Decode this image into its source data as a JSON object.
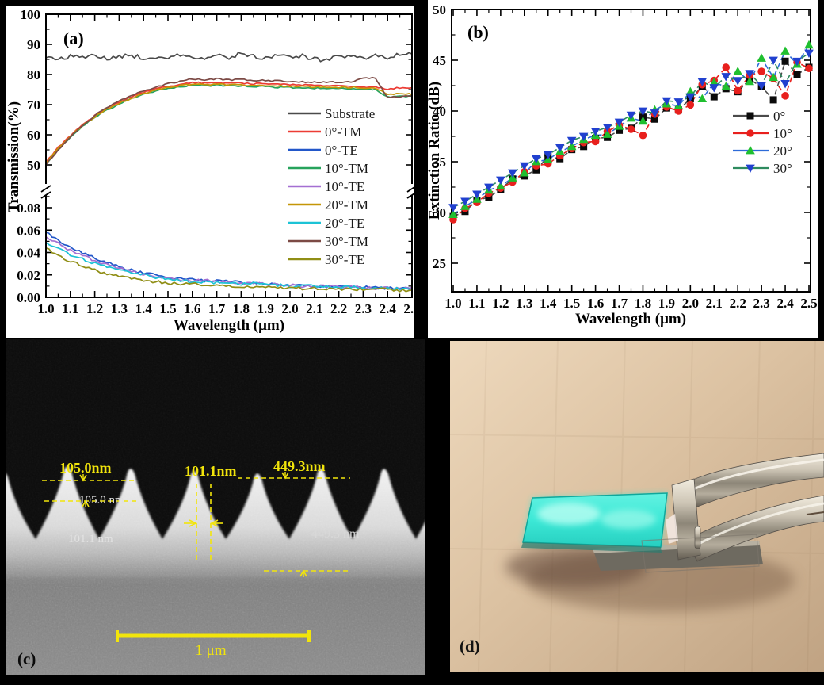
{
  "figure_title": "Four-panel figure: transmission spectra, extinction ratio, SEM cross-section, device photo",
  "chart_data": [
    {
      "type": "line",
      "panel_label": "(a)",
      "xlabel": "Wavelength (μm)",
      "ylabel": "Transmission(%)",
      "axis_break": true,
      "upper_ylim": [
        50,
        100
      ],
      "upper_ticks": [
        50,
        60,
        70,
        80,
        90,
        100
      ],
      "lower_ylim": [
        0.0,
        0.09
      ],
      "lower_ticks": [
        0.0,
        0.02,
        0.04,
        0.06,
        0.08
      ],
      "x_ticks": [
        1.0,
        1.1,
        1.2,
        1.3,
        1.4,
        1.5,
        1.6,
        1.7,
        1.8,
        1.9,
        2.0,
        2.1,
        2.2,
        2.3,
        2.4,
        2.5
      ],
      "x": [
        1.0,
        1.05,
        1.1,
        1.15,
        1.2,
        1.25,
        1.3,
        1.35,
        1.4,
        1.45,
        1.5,
        1.55,
        1.6,
        1.65,
        1.7,
        1.75,
        1.8,
        1.85,
        1.9,
        1.95,
        2.0,
        2.05,
        2.1,
        2.15,
        2.2,
        2.25,
        2.3,
        2.35,
        2.4,
        2.45,
        2.5
      ],
      "series": [
        {
          "name": "Substrate",
          "color": "#4a4a4a",
          "segment": "upper",
          "jitter": 0.7,
          "values": [
            85.6,
            85.2,
            86.1,
            85.4,
            86.8,
            85.0,
            85.9,
            86.3,
            85.5,
            86.0,
            85.3,
            86.6,
            85.8,
            85.4,
            86.2,
            85.7,
            87.0,
            85.9,
            85.5,
            86.4,
            85.8,
            86.1,
            85.2,
            84.8,
            85.9,
            86.5,
            85.6,
            86.2,
            85.8,
            86.7,
            86.9
          ]
        },
        {
          "name": "0°-TM",
          "color": "#ec3c34",
          "segment": "upper",
          "jitter": 0.25,
          "values": [
            50.8,
            55.8,
            59.8,
            63.3,
            66.3,
            68.8,
            70.9,
            72.6,
            74.1,
            75.3,
            76.1,
            76.7,
            77.3,
            77.2,
            77.4,
            77.1,
            77.2,
            76.9,
            77.0,
            76.7,
            76.6,
            76.5,
            76.4,
            76.2,
            76.3,
            76.1,
            76.0,
            75.8,
            75.2,
            75.6,
            75.4
          ]
        },
        {
          "name": "0°-TE",
          "color": "#2257c9",
          "segment": "lower",
          "jitter": 0.0013,
          "values": [
            0.058,
            0.051,
            0.045,
            0.04,
            0.035,
            0.031,
            0.027,
            0.024,
            0.022,
            0.02,
            0.018,
            0.017,
            0.016,
            0.015,
            0.015,
            0.014,
            0.013,
            0.013,
            0.012,
            0.012,
            0.011,
            0.011,
            0.01,
            0.01,
            0.01,
            0.009,
            0.009,
            0.009,
            0.008,
            0.008,
            0.008
          ]
        },
        {
          "name": "10°-TM",
          "color": "#27a35c",
          "segment": "upper",
          "jitter": 0.25,
          "values": [
            50.3,
            55.2,
            59.2,
            62.7,
            65.7,
            68.2,
            70.2,
            71.9,
            73.4,
            74.6,
            75.4,
            76.0,
            76.4,
            76.3,
            76.4,
            76.2,
            76.2,
            76.0,
            76.0,
            75.8,
            75.7,
            75.6,
            75.5,
            75.4,
            75.4,
            75.3,
            75.2,
            75.1,
            72.6,
            72.8,
            72.9
          ]
        },
        {
          "name": "10°-TE",
          "color": "#a46fd2",
          "segment": "lower",
          "jitter": 0.0013,
          "values": [
            0.054,
            0.048,
            0.042,
            0.037,
            0.033,
            0.029,
            0.026,
            0.023,
            0.021,
            0.019,
            0.017,
            0.016,
            0.015,
            0.015,
            0.014,
            0.013,
            0.013,
            0.012,
            0.012,
            0.011,
            0.011,
            0.01,
            0.01,
            0.01,
            0.009,
            0.009,
            0.009,
            0.008,
            0.008,
            0.008,
            0.008
          ]
        },
        {
          "name": "20°-TM",
          "color": "#c49607",
          "segment": "upper",
          "jitter": 0.25,
          "values": [
            50.5,
            55.5,
            59.5,
            63.0,
            66.0,
            68.5,
            70.5,
            72.2,
            73.7,
            74.9,
            75.7,
            76.3,
            76.8,
            76.7,
            76.8,
            76.6,
            76.6,
            76.4,
            76.4,
            76.2,
            76.1,
            76.0,
            75.9,
            75.8,
            75.8,
            75.7,
            75.6,
            75.5,
            73.4,
            73.6,
            73.5
          ]
        },
        {
          "name": "20°-TE",
          "color": "#1cc3d6",
          "segment": "lower",
          "jitter": 0.0013,
          "values": [
            0.049,
            0.043,
            0.038,
            0.034,
            0.03,
            0.027,
            0.024,
            0.022,
            0.02,
            0.018,
            0.016,
            0.015,
            0.014,
            0.014,
            0.013,
            0.013,
            0.012,
            0.012,
            0.011,
            0.011,
            0.01,
            0.01,
            0.01,
            0.009,
            0.009,
            0.009,
            0.008,
            0.008,
            0.008,
            0.008,
            0.007
          ]
        },
        {
          "name": "30°-TM",
          "color": "#7c4a45",
          "segment": "upper",
          "jitter": 0.25,
          "values": [
            50.0,
            55.0,
            59.3,
            63.1,
            66.4,
            69.0,
            71.2,
            73.0,
            74.6,
            75.9,
            76.9,
            77.8,
            78.5,
            78.3,
            78.6,
            78.2,
            78.3,
            78.0,
            78.0,
            77.8,
            77.7,
            77.6,
            77.5,
            77.4,
            77.5,
            77.4,
            79.0,
            78.8,
            72.3,
            72.7,
            73.0
          ]
        },
        {
          "name": "30°-TE",
          "color": "#908e15",
          "segment": "lower",
          "jitter": 0.0013,
          "values": [
            0.044,
            0.038,
            0.032,
            0.028,
            0.024,
            0.021,
            0.019,
            0.017,
            0.015,
            0.014,
            0.013,
            0.012,
            0.012,
            0.011,
            0.011,
            0.01,
            0.01,
            0.009,
            0.009,
            0.009,
            0.008,
            0.008,
            0.008,
            0.008,
            0.007,
            0.007,
            0.007,
            0.007,
            0.007,
            0.006,
            0.006
          ]
        }
      ]
    },
    {
      "type": "scatter",
      "panel_label": "(b)",
      "xlabel": "Wavelength (μm)",
      "ylabel": "Extinction Ratio (dB)",
      "ylim": [
        22.5,
        50
      ],
      "y_ticks": [
        25,
        30,
        35,
        40,
        45,
        50
      ],
      "x_ticks": [
        1.0,
        1.1,
        1.2,
        1.3,
        1.4,
        1.5,
        1.6,
        1.7,
        1.8,
        1.9,
        2.0,
        2.1,
        2.2,
        2.3,
        2.4,
        2.5
      ],
      "x": [
        1.0,
        1.05,
        1.1,
        1.15,
        1.2,
        1.25,
        1.3,
        1.35,
        1.4,
        1.45,
        1.5,
        1.55,
        1.6,
        1.65,
        1.7,
        1.75,
        1.8,
        1.85,
        1.9,
        1.95,
        2.0,
        2.05,
        2.1,
        2.15,
        2.2,
        2.25,
        2.3,
        2.35,
        2.4,
        2.45,
        2.5
      ],
      "series": [
        {
          "name": "0°",
          "marker": "square",
          "marker_color": "#0a0a0a",
          "line_color": "#4a4a4a",
          "values": [
            29.6,
            30.1,
            31.2,
            31.5,
            32.3,
            33.3,
            33.6,
            34.2,
            35.5,
            35.3,
            36.2,
            36.5,
            37.3,
            37.4,
            38.1,
            38.3,
            39.4,
            39.2,
            40.3,
            40.1,
            41.2,
            42.4,
            41.4,
            42.2,
            41.9,
            43.1,
            42.4,
            41.1,
            44.9,
            43.6,
            44.3
          ]
        },
        {
          "name": "10°",
          "marker": "circle",
          "marker_color": "#e8201d",
          "line_color": "#e8201d",
          "values": [
            29.3,
            30.4,
            31.0,
            31.9,
            32.4,
            33.0,
            34.0,
            34.6,
            34.8,
            35.6,
            36.3,
            36.9,
            37.0,
            38.0,
            38.6,
            38.2,
            37.6,
            39.7,
            40.4,
            40.0,
            40.6,
            42.6,
            43.0,
            44.3,
            42.0,
            43.5,
            43.9,
            43.2,
            41.5,
            44.8,
            44.2
          ]
        },
        {
          "name": "20°",
          "marker": "triangle-up",
          "marker_color": "#1fbf2f",
          "line_color": "#2d6bd8",
          "values": [
            29.8,
            30.6,
            31.3,
            32.2,
            32.6,
            33.4,
            33.9,
            35.0,
            35.2,
            36.0,
            36.5,
            37.2,
            37.6,
            37.7,
            38.5,
            39.3,
            39.0,
            40.1,
            40.7,
            40.5,
            41.9,
            41.2,
            42.8,
            42.4,
            43.9,
            42.9,
            45.2,
            43.3,
            45.9,
            44.6,
            46.5
          ]
        },
        {
          "name": "30°",
          "marker": "triangle-down",
          "marker_color": "#2140cf",
          "line_color": "#2e8b5f",
          "values": [
            30.5,
            31.1,
            31.8,
            32.5,
            33.2,
            33.9,
            34.6,
            35.3,
            35.7,
            36.4,
            37.1,
            37.5,
            38.0,
            38.4,
            38.9,
            39.6,
            40.0,
            39.8,
            41.0,
            40.9,
            41.4,
            42.9,
            42.3,
            43.4,
            43.0,
            43.7,
            42.5,
            45.0,
            42.7,
            44.9,
            45.7
          ]
        }
      ]
    }
  ],
  "sem": {
    "panel_label": "(c)",
    "scale_bar_label": "1 μm",
    "annotation_color": "#f2e50b",
    "measurements": [
      {
        "label_top": "105.0nm",
        "label_inner": "105.0 nm"
      },
      {
        "label_top": "101.1nm",
        "label_inner": "101.1 nm"
      },
      {
        "label_top": "449.3nm",
        "label_inner": "449.3 nm"
      }
    ]
  },
  "photo": {
    "panel_label": "(d)",
    "sample_color": "#3ce8d6",
    "background_color": "#d8bf9f"
  }
}
